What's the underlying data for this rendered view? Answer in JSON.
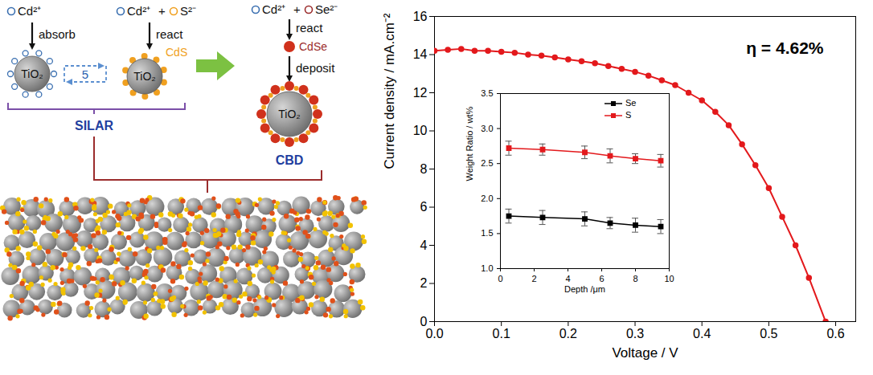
{
  "diagram": {
    "silar_steps": [
      {
        "ions": [
          "Cd²⁺"
        ],
        "action": "absorb",
        "particle": "TiO₂"
      },
      {
        "ions": [
          "Cd²⁺",
          "S²⁻"
        ],
        "action": "react",
        "particle": "TiO₂",
        "product": "CdS"
      }
    ],
    "cycles": "5",
    "silar_label": "SILAR",
    "cbd_step": {
      "ions": [
        "Cd²⁺",
        "Se²⁻"
      ],
      "action": "react",
      "product": "CdSe",
      "action2": "deposit",
      "particle": "TiO₂"
    },
    "cbd_label": "CBD",
    "ion_join": "+"
  },
  "chart_data": [
    {
      "type": "line",
      "x_label": "Voltage / V",
      "y_label": "Current density / mA.cm⁻²",
      "annotation": "η = 4.62%",
      "x": [
        0.0,
        0.02,
        0.04,
        0.06,
        0.08,
        0.1,
        0.12,
        0.14,
        0.16,
        0.18,
        0.2,
        0.22,
        0.24,
        0.26,
        0.28,
        0.3,
        0.32,
        0.34,
        0.36,
        0.38,
        0.4,
        0.42,
        0.44,
        0.46,
        0.48,
        0.5,
        0.52,
        0.54,
        0.56,
        0.585
      ],
      "series": [
        {
          "color": "#e3191c",
          "marker": "circle",
          "values": [
            14.2,
            14.25,
            14.3,
            14.2,
            14.2,
            14.15,
            14.1,
            14.0,
            13.95,
            13.85,
            13.75,
            13.65,
            13.55,
            13.4,
            13.25,
            13.1,
            12.9,
            12.65,
            12.4,
            12.0,
            11.6,
            11.0,
            10.3,
            9.3,
            8.2,
            7.0,
            5.5,
            4.0,
            2.3,
            0.0
          ]
        }
      ],
      "xlim": [
        0,
        0.63
      ],
      "xticks": [
        {
          "value": 0,
          "label": "0.0"
        },
        {
          "value": 0.1,
          "label": "0.1"
        },
        {
          "value": 0.2,
          "label": "0.2"
        },
        {
          "value": 0.3,
          "label": "0.3"
        },
        {
          "value": 0.4,
          "label": "0.4"
        },
        {
          "value": 0.5,
          "label": "0.5"
        },
        {
          "value": 0.6,
          "label": "0.6"
        }
      ],
      "ylim": [
        0,
        16
      ],
      "yticks": [
        0,
        2,
        4,
        6,
        8,
        10,
        12,
        14,
        16
      ]
    },
    {
      "type": "line",
      "x_label": "Depth /μm",
      "y_label": "Weight Ratio / wt%",
      "x": [
        0.5,
        2.5,
        5,
        6.5,
        8,
        9.5
      ],
      "series": [
        {
          "name": "Se",
          "color": "#000000",
          "marker": "square",
          "values": [
            1.75,
            1.73,
            1.71,
            1.65,
            1.62,
            1.6
          ],
          "errors": [
            0.1,
            0.1,
            0.1,
            0.08,
            0.1,
            0.1
          ]
        },
        {
          "name": "S",
          "color": "#e3191c",
          "marker": "square",
          "values": [
            2.72,
            2.7,
            2.66,
            2.61,
            2.57,
            2.54
          ],
          "errors": [
            0.1,
            0.08,
            0.09,
            0.1,
            0.07,
            0.09
          ]
        }
      ],
      "legend": "upper right",
      "xlim": [
        0,
        10
      ],
      "xticks": [
        0,
        2,
        4,
        6,
        8,
        10
      ],
      "ylim": [
        1,
        3.5
      ],
      "yticks": [
        {
          "value": 1,
          "label": "1.0"
        },
        {
          "value": 1.5,
          "label": "1.5"
        },
        {
          "value": 2,
          "label": "2.0"
        },
        {
          "value": 2.5,
          "label": "2.5"
        },
        {
          "value": 3,
          "label": "3.0"
        },
        {
          "value": 3.5,
          "label": "3.5"
        }
      ]
    }
  ]
}
